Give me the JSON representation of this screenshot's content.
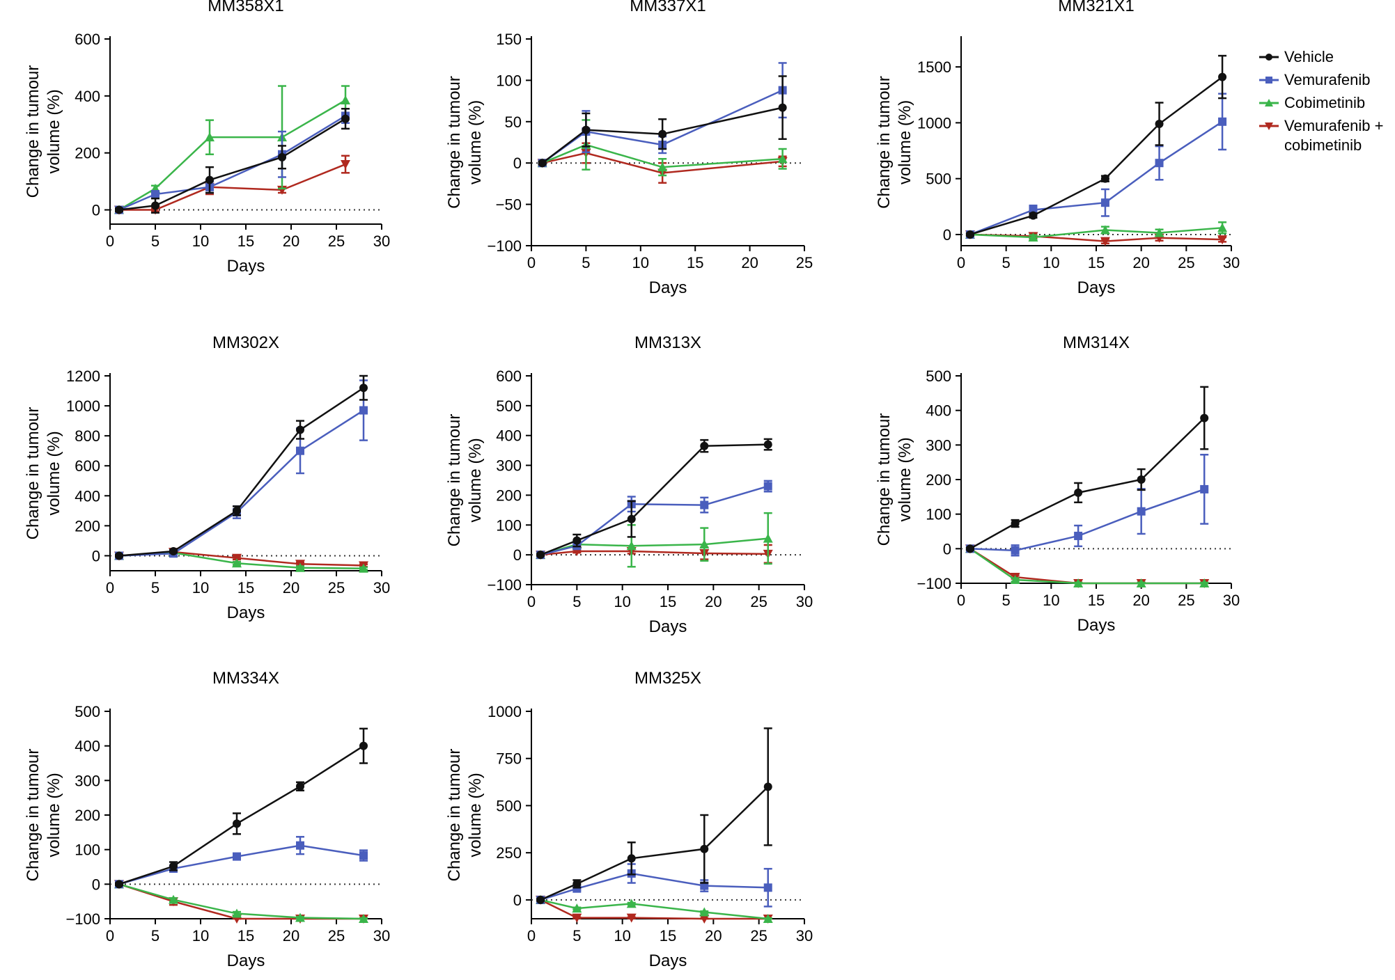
{
  "figure_title": "",
  "legend": {
    "items": [
      {
        "key": "vehicle",
        "label": "Vehicle"
      },
      {
        "key": "vemurafenib",
        "label": "Vemurafenib"
      },
      {
        "key": "cobimetinib",
        "label": "Cobimetinib"
      },
      {
        "key": "combo",
        "label_line1": "Vemurafenib +",
        "label_line2": "cobimetinib"
      }
    ]
  },
  "series_styles": {
    "vehicle": {
      "color": "#111111",
      "marker": "circle"
    },
    "vemurafenib": {
      "color": "#4a5ebd",
      "marker": "square"
    },
    "cobimetinib": {
      "color": "#3ab54a",
      "marker": "triangle-up"
    },
    "combo": {
      "color": "#b0291f",
      "marker": "triangle-down"
    }
  },
  "chart_data": [
    {
      "type": "line",
      "title": "MM358X1",
      "xlabel": "Days",
      "ylabel_line1": "Change in tumour",
      "ylabel_line2": "volume (%)",
      "xlim": [
        0,
        30
      ],
      "ylim": [
        -50,
        600
      ],
      "ymin_visible": -25,
      "xticks": [
        0,
        5,
        10,
        15,
        20,
        25,
        30
      ],
      "yticks": [
        0,
        200,
        400,
        600
      ],
      "series": [
        {
          "key": "vehicle",
          "name": "Vehicle",
          "x": [
            1,
            5,
            11,
            19,
            26
          ],
          "y": [
            0,
            15,
            105,
            185,
            320
          ],
          "err": [
            5,
            25,
            45,
            40,
            35
          ]
        },
        {
          "key": "vemurafenib",
          "name": "Vemurafenib",
          "x": [
            1,
            5,
            11,
            19,
            26
          ],
          "y": [
            0,
            55,
            80,
            195,
            330
          ],
          "err": [
            5,
            10,
            20,
            80,
            25
          ]
        },
        {
          "key": "cobimetinib",
          "name": "Cobimetinib",
          "x": [
            1,
            5,
            11,
            19,
            26
          ],
          "y": [
            0,
            75,
            255,
            255,
            385
          ],
          "err": [
            5,
            10,
            60,
            180,
            50
          ]
        },
        {
          "key": "combo",
          "name": "Vemurafenib + cobimetinib",
          "x": [
            1,
            5,
            11,
            19,
            26
          ],
          "y": [
            0,
            0,
            80,
            70,
            160
          ],
          "err": [
            5,
            5,
            25,
            10,
            30
          ]
        }
      ]
    },
    {
      "type": "line",
      "title": "MM337X1",
      "xlabel": "Days",
      "ylabel_line1": "Change in tumour",
      "ylabel_line2": "volume (%)",
      "xlim": [
        0,
        25
      ],
      "ylim": [
        -100,
        150
      ],
      "xticks": [
        0,
        5,
        10,
        15,
        20,
        25
      ],
      "yticks": [
        -100,
        -50,
        0,
        50,
        100,
        150
      ],
      "series": [
        {
          "key": "vehicle",
          "name": "Vehicle",
          "x": [
            1,
            5,
            12,
            23
          ],
          "y": [
            0,
            40,
            35,
            67
          ],
          "err": [
            2,
            20,
            18,
            38
          ]
        },
        {
          "key": "vemurafenib",
          "name": "Vemurafenib",
          "x": [
            1,
            5,
            12,
            23
          ],
          "y": [
            0,
            38,
            22,
            88
          ],
          "err": [
            2,
            25,
            10,
            33
          ]
        },
        {
          "key": "cobimetinib",
          "name": "Cobimetinib",
          "x": [
            1,
            5,
            12,
            23
          ],
          "y": [
            0,
            22,
            -5,
            5
          ],
          "err": [
            2,
            30,
            10,
            12
          ]
        },
        {
          "key": "combo",
          "name": "Vemurafenib + cobimetinib",
          "x": [
            1,
            5,
            12,
            23
          ],
          "y": [
            0,
            12,
            -12,
            2
          ],
          "err": [
            2,
            12,
            12,
            6
          ]
        }
      ]
    },
    {
      "type": "line",
      "title": "MM321X1",
      "xlabel": "Days",
      "ylabel_line1": "Change in tumour",
      "ylabel_line2": "volume (%)",
      "xlim": [
        0,
        30
      ],
      "ylim": [
        -100,
        1750
      ],
      "xticks": [
        0,
        5,
        10,
        15,
        20,
        25,
        30
      ],
      "yticks": [
        0,
        500,
        1000,
        1500
      ],
      "series": [
        {
          "key": "vehicle",
          "name": "Vehicle",
          "x": [
            1,
            8,
            16,
            22,
            29
          ],
          "y": [
            0,
            170,
            500,
            990,
            1410
          ],
          "err": [
            10,
            20,
            25,
            190,
            190
          ]
        },
        {
          "key": "vemurafenib",
          "name": "Vemurafenib",
          "x": [
            1,
            8,
            16,
            22,
            29
          ],
          "y": [
            0,
            220,
            285,
            640,
            1010
          ],
          "err": [
            10,
            40,
            120,
            150,
            250
          ]
        },
        {
          "key": "cobimetinib",
          "name": "Cobimetinib",
          "x": [
            1,
            8,
            16,
            22,
            29
          ],
          "y": [
            0,
            -25,
            40,
            15,
            60
          ],
          "err": [
            10,
            20,
            30,
            30,
            50
          ]
        },
        {
          "key": "combo",
          "name": "Vemurafenib + cobimetinib",
          "x": [
            1,
            8,
            16,
            22,
            29
          ],
          "y": [
            0,
            -15,
            -60,
            -30,
            -45
          ],
          "err": [
            10,
            15,
            20,
            25,
            20
          ]
        }
      ]
    },
    {
      "type": "line",
      "title": "MM302X",
      "xlabel": "Days",
      "ylabel_line1": "Change in tumour",
      "ylabel_line2": "volume (%)",
      "xlim": [
        0,
        30
      ],
      "ylim": [
        -100,
        1200
      ],
      "xticks": [
        0,
        5,
        10,
        15,
        20,
        25,
        30
      ],
      "yticks": [
        0,
        200,
        400,
        600,
        800,
        1000,
        1200
      ],
      "series": [
        {
          "key": "vehicle",
          "name": "Vehicle",
          "x": [
            1,
            7,
            14,
            21,
            28
          ],
          "y": [
            0,
            30,
            300,
            840,
            1120
          ],
          "err": [
            5,
            10,
            30,
            60,
            80
          ]
        },
        {
          "key": "vemurafenib",
          "name": "Vemurafenib",
          "x": [
            1,
            7,
            14,
            21,
            28
          ],
          "y": [
            0,
            15,
            290,
            700,
            970
          ],
          "err": [
            5,
            10,
            40,
            150,
            200
          ]
        },
        {
          "key": "cobimetinib",
          "name": "Cobimetinib",
          "x": [
            1,
            7,
            14,
            21,
            28
          ],
          "y": [
            0,
            20,
            -50,
            -80,
            -85
          ],
          "err": [
            5,
            10,
            10,
            10,
            8
          ]
        },
        {
          "key": "combo",
          "name": "Vemurafenib + cobimetinib",
          "x": [
            1,
            7,
            14,
            21,
            28
          ],
          "y": [
            0,
            25,
            -15,
            -55,
            -65
          ],
          "err": [
            5,
            10,
            10,
            10,
            8
          ]
        }
      ]
    },
    {
      "type": "line",
      "title": "MM313X",
      "xlabel": "Days",
      "ylabel_line1": "Change in tumour",
      "ylabel_line2": "volume (%)",
      "xlim": [
        0,
        30
      ],
      "ylim": [
        -100,
        600
      ],
      "xticks": [
        0,
        5,
        10,
        15,
        20,
        25,
        30
      ],
      "yticks": [
        -100,
        0,
        100,
        200,
        300,
        400,
        500,
        600
      ],
      "series": [
        {
          "key": "vehicle",
          "name": "Vehicle",
          "x": [
            1,
            5,
            11,
            19,
            26
          ],
          "y": [
            0,
            48,
            120,
            365,
            370
          ],
          "err": [
            3,
            20,
            60,
            20,
            18
          ]
        },
        {
          "key": "vemurafenib",
          "name": "Vemurafenib",
          "x": [
            1,
            5,
            11,
            19,
            26
          ],
          "y": [
            0,
            30,
            170,
            167,
            230
          ],
          "err": [
            3,
            10,
            25,
            25,
            18
          ]
        },
        {
          "key": "cobimetinib",
          "name": "Cobimetinib",
          "x": [
            1,
            5,
            11,
            19,
            26
          ],
          "y": [
            0,
            35,
            30,
            35,
            55
          ],
          "err": [
            3,
            10,
            70,
            55,
            85
          ]
        },
        {
          "key": "combo",
          "name": "Vemurafenib + cobimetinib",
          "x": [
            1,
            5,
            11,
            19,
            26
          ],
          "y": [
            0,
            12,
            12,
            5,
            3
          ],
          "err": [
            3,
            5,
            8,
            20,
            30
          ]
        }
      ]
    },
    {
      "type": "line",
      "title": "MM314X",
      "xlabel": "Days",
      "ylabel_line1": "Change in tumour",
      "ylabel_line2": "volume (%)",
      "xlim": [
        0,
        30
      ],
      "ylim": [
        -100,
        500
      ],
      "xticks": [
        0,
        5,
        10,
        15,
        20,
        25,
        30
      ],
      "yticks": [
        -100,
        0,
        100,
        200,
        300,
        400,
        500
      ],
      "series": [
        {
          "key": "vehicle",
          "name": "Vehicle",
          "x": [
            1,
            6,
            13,
            20,
            27
          ],
          "y": [
            0,
            73,
            162,
            200,
            378
          ],
          "err": [
            3,
            10,
            28,
            30,
            90
          ]
        },
        {
          "key": "vemurafenib",
          "name": "Vemurafenib",
          "x": [
            1,
            6,
            13,
            20,
            27
          ],
          "y": [
            0,
            -5,
            37,
            108,
            172
          ],
          "err": [
            3,
            15,
            30,
            65,
            100
          ]
        },
        {
          "key": "cobimetinib",
          "name": "Cobimetinib",
          "x": [
            1,
            6,
            13,
            20,
            27
          ],
          "y": [
            0,
            -90,
            -100,
            -100,
            -100
          ],
          "err": [
            3,
            5,
            2,
            2,
            2
          ]
        },
        {
          "key": "combo",
          "name": "Vemurafenib + cobimetinib",
          "x": [
            1,
            6,
            13,
            20,
            27
          ],
          "y": [
            0,
            -82,
            -100,
            -100,
            -100
          ],
          "err": [
            3,
            5,
            2,
            2,
            2
          ]
        }
      ]
    },
    {
      "type": "line",
      "title": "MM334X",
      "xlabel": "Days",
      "ylabel_line1": "Change in tumour",
      "ylabel_line2": "volume (%)",
      "xlim": [
        0,
        30
      ],
      "ylim": [
        -100,
        500
      ],
      "xticks": [
        0,
        5,
        10,
        15,
        20,
        25,
        30
      ],
      "yticks": [
        -100,
        0,
        100,
        200,
        300,
        400,
        500
      ],
      "series": [
        {
          "key": "vehicle",
          "name": "Vehicle",
          "x": [
            1,
            7,
            14,
            21,
            28
          ],
          "y": [
            0,
            52,
            175,
            283,
            400
          ],
          "err": [
            3,
            12,
            30,
            12,
            50
          ]
        },
        {
          "key": "vemurafenib",
          "name": "Vemurafenib",
          "x": [
            1,
            7,
            14,
            21,
            28
          ],
          "y": [
            0,
            45,
            80,
            112,
            83
          ],
          "err": [
            3,
            8,
            8,
            25,
            15
          ]
        },
        {
          "key": "cobimetinib",
          "name": "Cobimetinib",
          "x": [
            1,
            7,
            14,
            21,
            28
          ],
          "y": [
            0,
            -45,
            -85,
            -97,
            -100
          ],
          "err": [
            3,
            5,
            5,
            3,
            2
          ]
        },
        {
          "key": "combo",
          "name": "Vemurafenib + cobimetinib",
          "x": [
            1,
            7,
            14,
            21,
            28
          ],
          "y": [
            0,
            -50,
            -100,
            -100,
            -100
          ],
          "err": [
            3,
            10,
            3,
            2,
            2
          ]
        }
      ]
    },
    {
      "type": "line",
      "title": "MM325X",
      "xlabel": "Days",
      "ylabel_line1": "Change in tumour",
      "ylabel_line2": "volume (%)",
      "xlim": [
        0,
        30
      ],
      "ylim": [
        -100,
        1000
      ],
      "xticks": [
        0,
        5,
        10,
        15,
        20,
        25,
        30
      ],
      "yticks": [
        0,
        250,
        500,
        750,
        1000
      ],
      "series": [
        {
          "key": "vehicle",
          "name": "Vehicle",
          "x": [
            1,
            5,
            11,
            19,
            26
          ],
          "y": [
            0,
            85,
            220,
            270,
            600
          ],
          "err": [
            5,
            20,
            85,
            180,
            310
          ]
        },
        {
          "key": "vemurafenib",
          "name": "Vemurafenib",
          "x": [
            1,
            5,
            11,
            19,
            26
          ],
          "y": [
            0,
            60,
            140,
            75,
            65
          ],
          "err": [
            5,
            10,
            50,
            30,
            100
          ]
        },
        {
          "key": "cobimetinib",
          "name": "Cobimetinib",
          "x": [
            1,
            5,
            11,
            19,
            26
          ],
          "y": [
            0,
            -45,
            -20,
            -65,
            -100
          ],
          "err": [
            5,
            5,
            5,
            5,
            3
          ]
        },
        {
          "key": "combo",
          "name": "Vemurafenib + cobimetinib",
          "x": [
            1,
            5,
            11,
            19,
            26
          ],
          "y": [
            0,
            -95,
            -95,
            -100,
            -100
          ],
          "err": [
            5,
            3,
            3,
            2,
            2
          ]
        }
      ]
    }
  ]
}
